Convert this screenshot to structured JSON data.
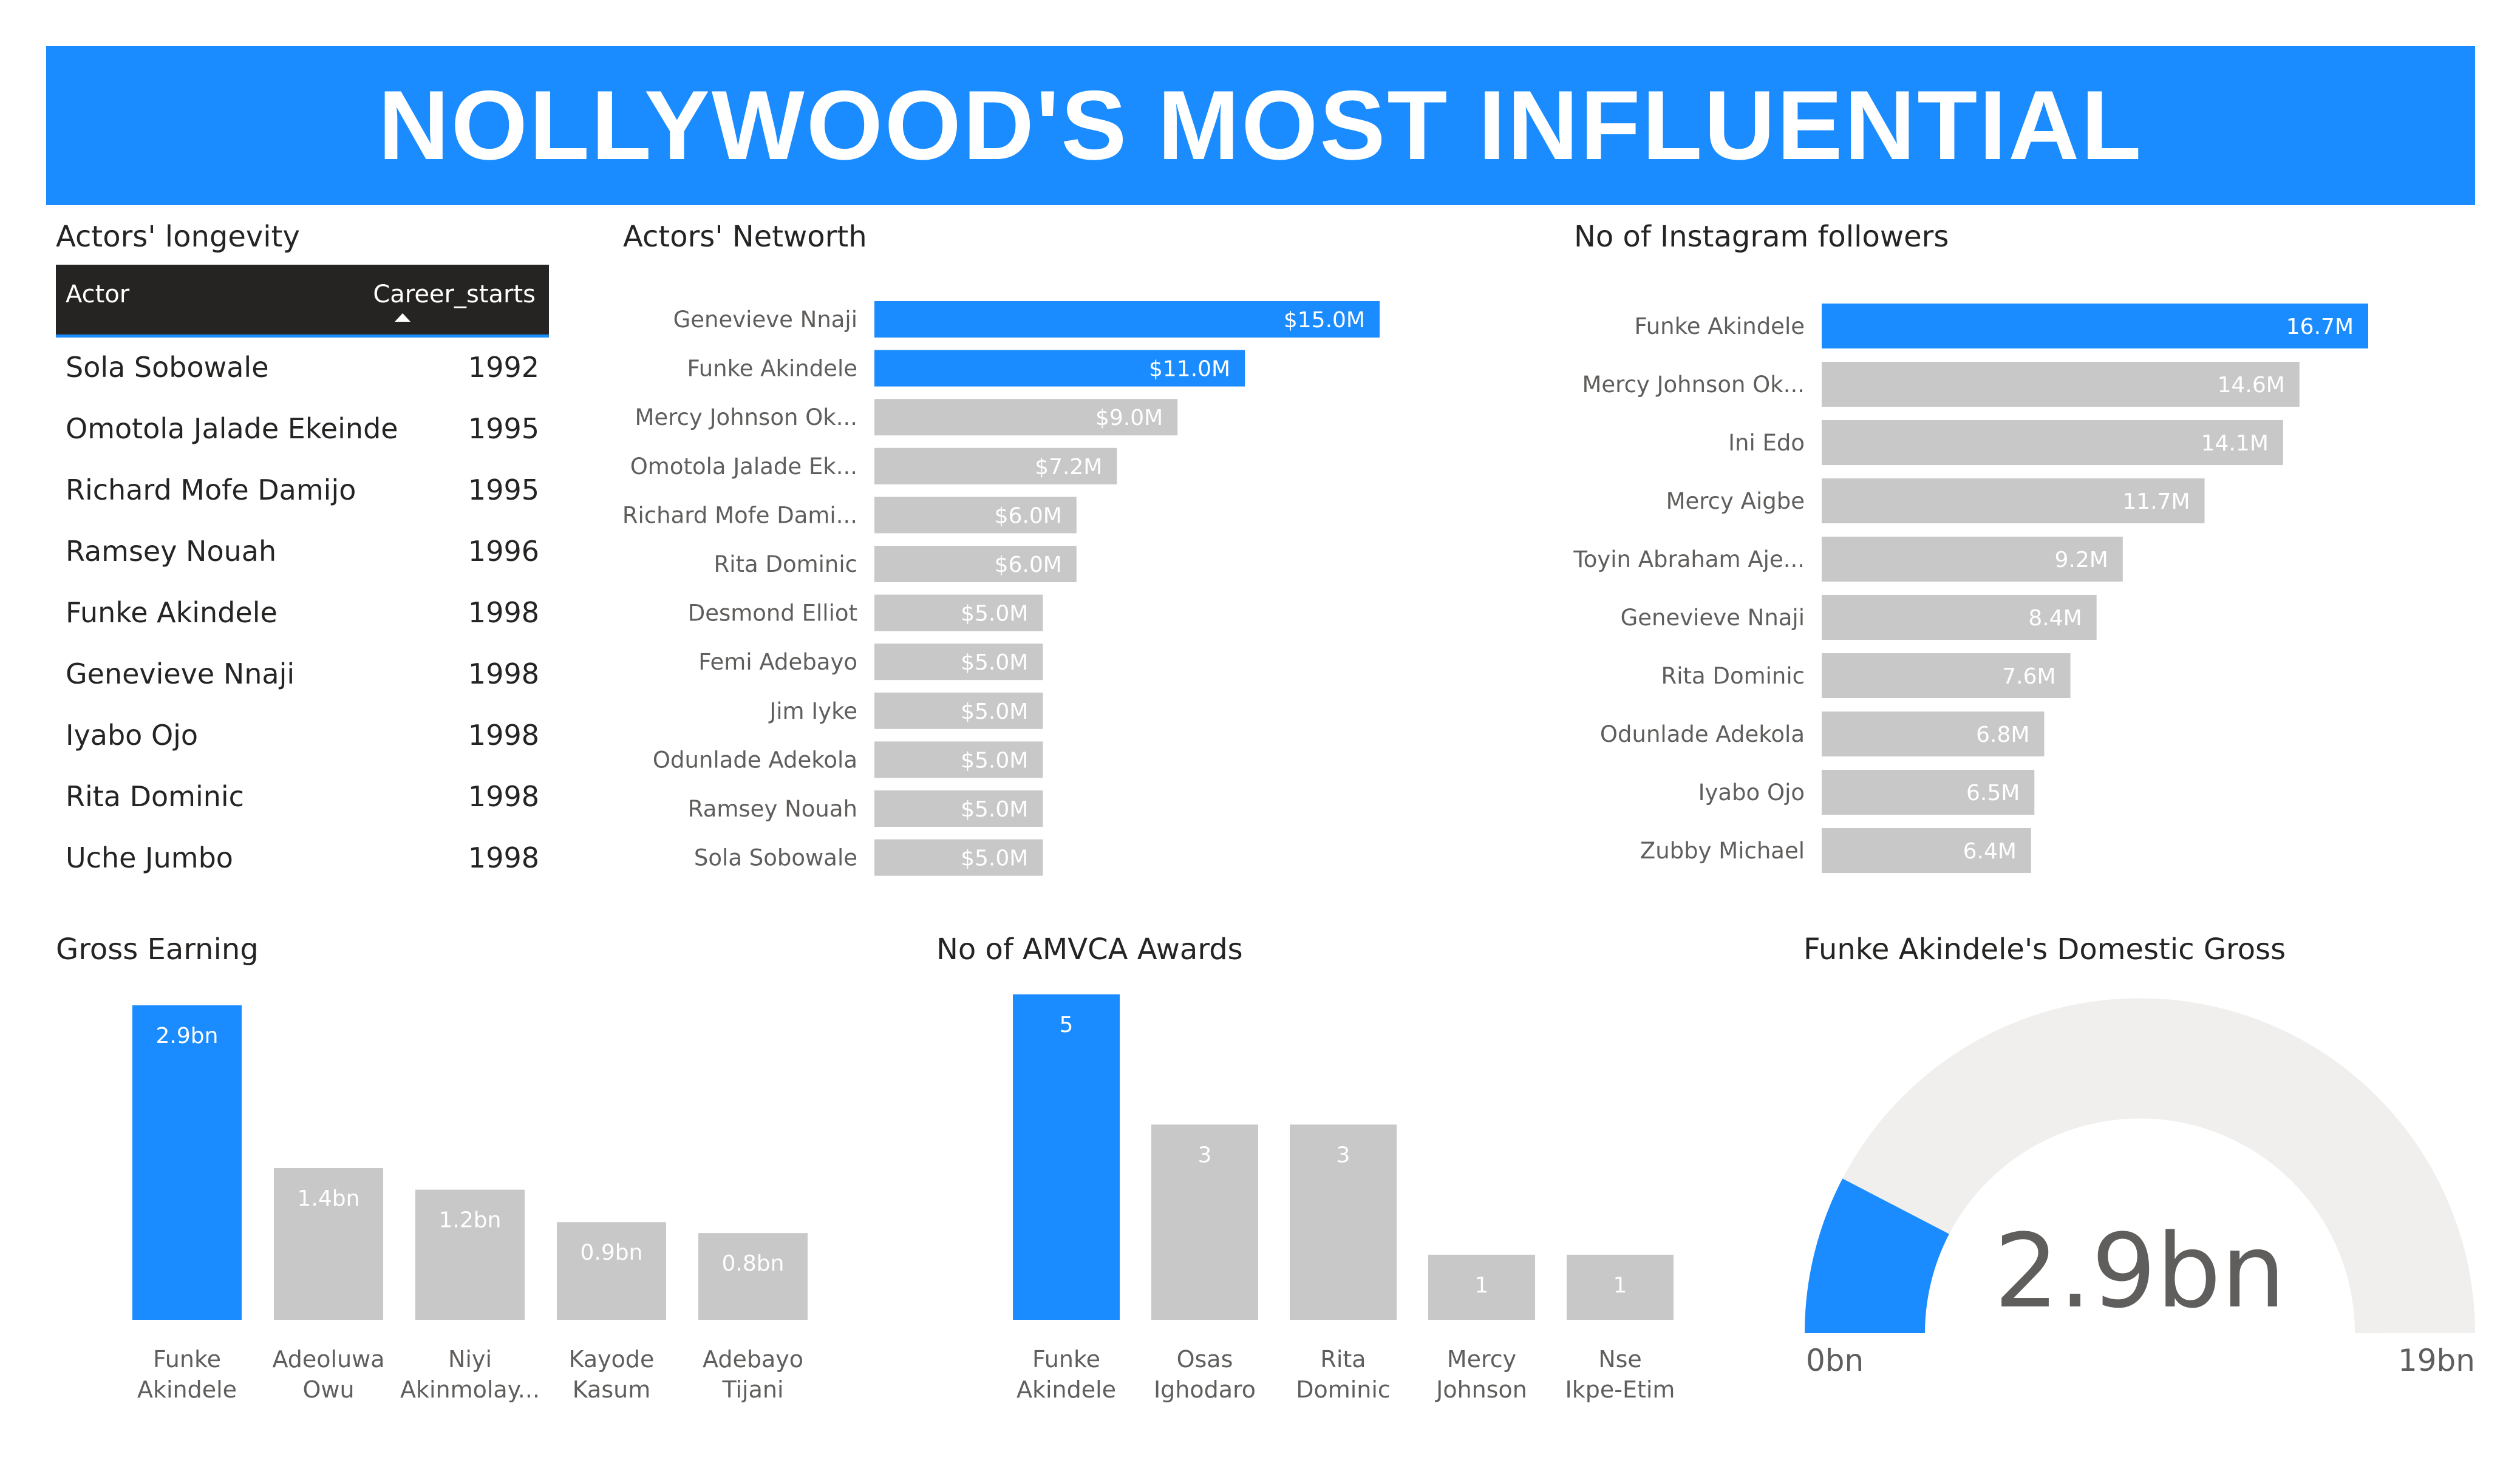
{
  "header": {
    "title": "NOLLYWOOD'S MOST INFLUENTIAL"
  },
  "colors": {
    "accent": "#1a8cff",
    "muted": "#c8c8c8",
    "text": "#252423",
    "axis_text": "#605e5c",
    "gauge_track": "#f0efee"
  },
  "longevity": {
    "title": "Actors' longevity",
    "columns": [
      "Actor",
      "Career_starts"
    ],
    "rows": [
      [
        "Sola Sobowale",
        "1992"
      ],
      [
        "Omotola Jalade Ekeinde",
        "1995"
      ],
      [
        "Richard Mofe Damijo",
        "1995"
      ],
      [
        "Ramsey Nouah",
        "1996"
      ],
      [
        "Funke Akindele",
        "1998"
      ],
      [
        "Genevieve Nnaji",
        "1998"
      ],
      [
        "Iyabo Ojo",
        "1998"
      ],
      [
        "Rita Dominic",
        "1998"
      ],
      [
        "Uche Jumbo",
        "1998"
      ]
    ]
  },
  "networth": {
    "title": "Actors' Networth"
  },
  "instagram": {
    "title": "No of Instagram followers"
  },
  "gross": {
    "title": "Gross Earning"
  },
  "amvca": {
    "title": "No of AMVCA Awards"
  },
  "gauge": {
    "title": "Funke Akindele's Domestic Gross",
    "value_label": "2.9bn",
    "min_label": "0bn",
    "max_label": "19bn"
  },
  "chart_data": [
    {
      "type": "bar",
      "orientation": "horizontal",
      "title": "Actors' Networth",
      "categories": [
        "Genevieve Nnaji",
        "Funke Akindele",
        "Mercy Johnson Ok...",
        "Omotola Jalade Ek...",
        "Richard Mofe Dami...",
        "Rita Dominic",
        "Desmond Elliot",
        "Femi Adebayo",
        "Jim Iyke",
        "Odunlade Adekola",
        "Ramsey Nouah",
        "Sola Sobowale"
      ],
      "values": [
        15.0,
        11.0,
        9.0,
        7.2,
        6.0,
        6.0,
        5.0,
        5.0,
        5.0,
        5.0,
        5.0,
        5.0
      ],
      "labels": [
        "$15.0M",
        "$11.0M",
        "$9.0M",
        "$7.2M",
        "$6.0M",
        "$6.0M",
        "$5.0M",
        "$5.0M",
        "$5.0M",
        "$5.0M",
        "$5.0M",
        "$5.0M"
      ],
      "highlight": [
        true,
        true,
        false,
        false,
        false,
        false,
        false,
        false,
        false,
        false,
        false,
        false
      ],
      "xlim": [
        0,
        15.0
      ]
    },
    {
      "type": "bar",
      "orientation": "horizontal",
      "title": "No of Instagram followers",
      "categories": [
        "Funke Akindele",
        "Mercy Johnson Ok...",
        "Ini Edo",
        "Mercy Aigbe",
        "Toyin Abraham Aje...",
        "Genevieve Nnaji",
        "Rita Dominic",
        "Odunlade Adekola",
        "Iyabo Ojo",
        "Zubby Michael"
      ],
      "values": [
        16.7,
        14.6,
        14.1,
        11.7,
        9.2,
        8.4,
        7.6,
        6.8,
        6.5,
        6.4
      ],
      "labels": [
        "16.7M",
        "14.6M",
        "14.1M",
        "11.7M",
        "9.2M",
        "8.4M",
        "7.6M",
        "6.8M",
        "6.5M",
        "6.4M"
      ],
      "highlight": [
        true,
        false,
        false,
        false,
        false,
        false,
        false,
        false,
        false,
        false
      ],
      "xlim": [
        0,
        16.7
      ]
    },
    {
      "type": "bar",
      "orientation": "vertical",
      "title": "Gross Earning",
      "categories": [
        [
          "Funke",
          "Akindele"
        ],
        [
          "Adeoluwa",
          "Owu"
        ],
        [
          "Niyi",
          "Akinmolay..."
        ],
        [
          "Kayode",
          "Kasum"
        ],
        [
          "Adebayo",
          "Tijani"
        ]
      ],
      "values": [
        2.9,
        1.4,
        1.2,
        0.9,
        0.8
      ],
      "labels": [
        "2.9bn",
        "1.4bn",
        "1.2bn",
        "0.9bn",
        "0.8bn"
      ],
      "highlight": [
        true,
        false,
        false,
        false,
        false
      ],
      "ylim": [
        0,
        2.9
      ]
    },
    {
      "type": "bar",
      "orientation": "vertical",
      "title": "No of AMVCA Awards",
      "categories": [
        [
          "Funke",
          "Akindele"
        ],
        [
          "Osas",
          "Ighodaro"
        ],
        [
          "Rita",
          "Dominic"
        ],
        [
          "Mercy",
          "Johnson"
        ],
        [
          "Nse",
          "Ikpe-Etim"
        ]
      ],
      "values": [
        5,
        3,
        3,
        1,
        1
      ],
      "labels": [
        "5",
        "3",
        "3",
        "1",
        "1"
      ],
      "highlight": [
        true,
        false,
        false,
        false,
        false
      ],
      "ylim": [
        0,
        5
      ]
    },
    {
      "type": "gauge",
      "title": "Funke Akindele's Domestic Gross",
      "value": 2.9,
      "min": 0,
      "max": 19,
      "unit": "bn"
    }
  ]
}
